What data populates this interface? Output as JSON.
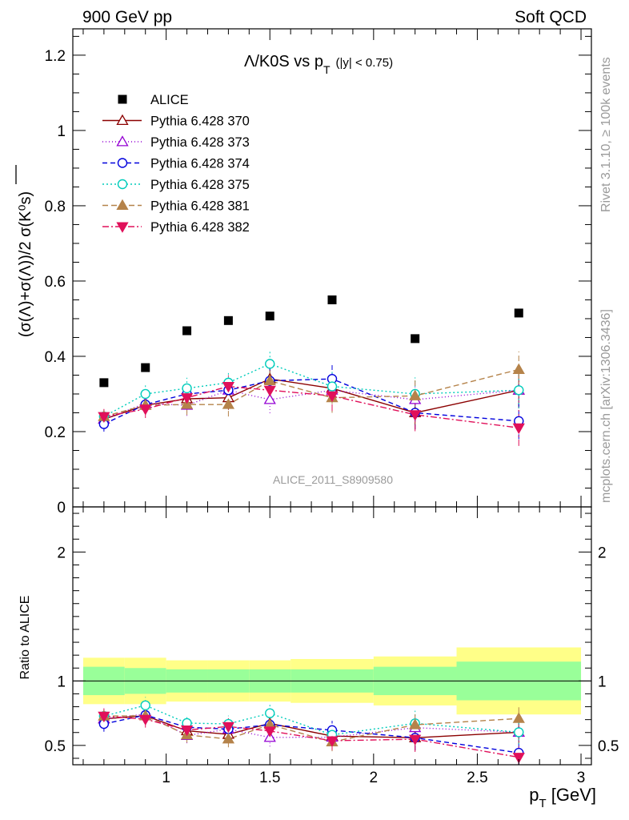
{
  "header": {
    "left": "900 GeV pp",
    "right": "Soft QCD"
  },
  "side_text": {
    "rivet": "Rivet 3.1.10, ≥ 100k events",
    "mcplots": "mcplots.cern.ch [arXiv:1306.3436]"
  },
  "chart_data": {
    "type": "scatter",
    "title_main": "Λ/K0S vs p",
    "title_sub": "T",
    "title_cut": "(|y| < 0.75)",
    "watermark": "ALICE_2011_S8909580",
    "ylabel": "(σ(Λ)+σ(Λ))/2 σ(K⁰s)",
    "ratio_ylabel": "Ratio to ALICE",
    "xlabel": "p",
    "xlabel_sub": "T",
    "xlabel_unit": " [GeV]",
    "xlim": [
      0.55,
      3.05
    ],
    "ylim": [
      0,
      1.27
    ],
    "ratio_ylim": [
      0.35,
      2.35
    ],
    "x_ticks": [
      {
        "v": 1,
        "label": "1"
      },
      {
        "v": 1.5,
        "label": "1.5"
      },
      {
        "v": 2,
        "label": "2"
      },
      {
        "v": 2.5,
        "label": "2.5"
      },
      {
        "v": 3,
        "label": "3"
      }
    ],
    "y_ticks": [
      {
        "v": 0,
        "label": "0"
      },
      {
        "v": 0.2,
        "label": "0.2"
      },
      {
        "v": 0.4,
        "label": "0.4"
      },
      {
        "v": 0.6,
        "label": "0.6"
      },
      {
        "v": 0.8,
        "label": "0.8"
      },
      {
        "v": 1,
        "label": "1"
      },
      {
        "v": 1.2,
        "label": "1.2"
      }
    ],
    "ratio_y_ticks": [
      {
        "v": 0.5,
        "label": "0.5"
      },
      {
        "v": 1,
        "label": "1"
      },
      {
        "v": 2,
        "label": "2"
      }
    ],
    "bins": [
      0.6,
      0.8,
      1.0,
      1.2,
      1.4,
      1.6,
      2.0,
      2.4,
      3.0
    ],
    "x": [
      0.7,
      0.9,
      1.1,
      1.3,
      1.5,
      1.8,
      2.2,
      2.7
    ],
    "data": {
      "name": "ALICE",
      "values": [
        0.33,
        0.37,
        0.468,
        0.495,
        0.507,
        0.55,
        0.447,
        0.515
      ],
      "band_inner": [
        0.11,
        0.1,
        0.09,
        0.09,
        0.09,
        0.09,
        0.11,
        0.15
      ],
      "band_outer": [
        0.18,
        0.18,
        0.16,
        0.16,
        0.16,
        0.17,
        0.19,
        0.26
      ]
    },
    "series": [
      {
        "name": "Pythia 6.428 370",
        "color": "#8b0000",
        "marker": "tri-up-open",
        "dash": "",
        "values": [
          0.233,
          0.27,
          0.287,
          0.29,
          0.34,
          0.315,
          0.25,
          0.31
        ]
      },
      {
        "name": "Pythia 6.428 373",
        "color": "#9400d3",
        "marker": "tri-up-open",
        "dash": "1 3",
        "values": [
          0.233,
          0.275,
          0.27,
          0.31,
          0.285,
          0.31,
          0.285,
          0.31
        ]
      },
      {
        "name": "Pythia 6.428 374",
        "color": "#0000dd",
        "marker": "circle-open",
        "dash": "6 4",
        "values": [
          0.22,
          0.272,
          0.3,
          0.31,
          0.335,
          0.34,
          0.25,
          0.228
        ]
      },
      {
        "name": "Pythia 6.428 375",
        "color": "#00ccbb",
        "marker": "circle-open",
        "dash": "2 3",
        "values": [
          0.24,
          0.3,
          0.315,
          0.33,
          0.38,
          0.32,
          0.3,
          0.31
        ]
      },
      {
        "name": "Pythia 6.428 381",
        "color": "#b5834a",
        "marker": "tri-up-filled",
        "dash": "7 4",
        "values": [
          0.24,
          0.27,
          0.272,
          0.272,
          0.335,
          0.29,
          0.295,
          0.365
        ]
      },
      {
        "name": "Pythia 6.428 382",
        "color": "#e0105a",
        "marker": "tri-down-filled",
        "dash": "8 3 2 3",
        "values": [
          0.24,
          0.26,
          0.29,
          0.32,
          0.31,
          0.295,
          0.245,
          0.21
        ]
      }
    ]
  }
}
